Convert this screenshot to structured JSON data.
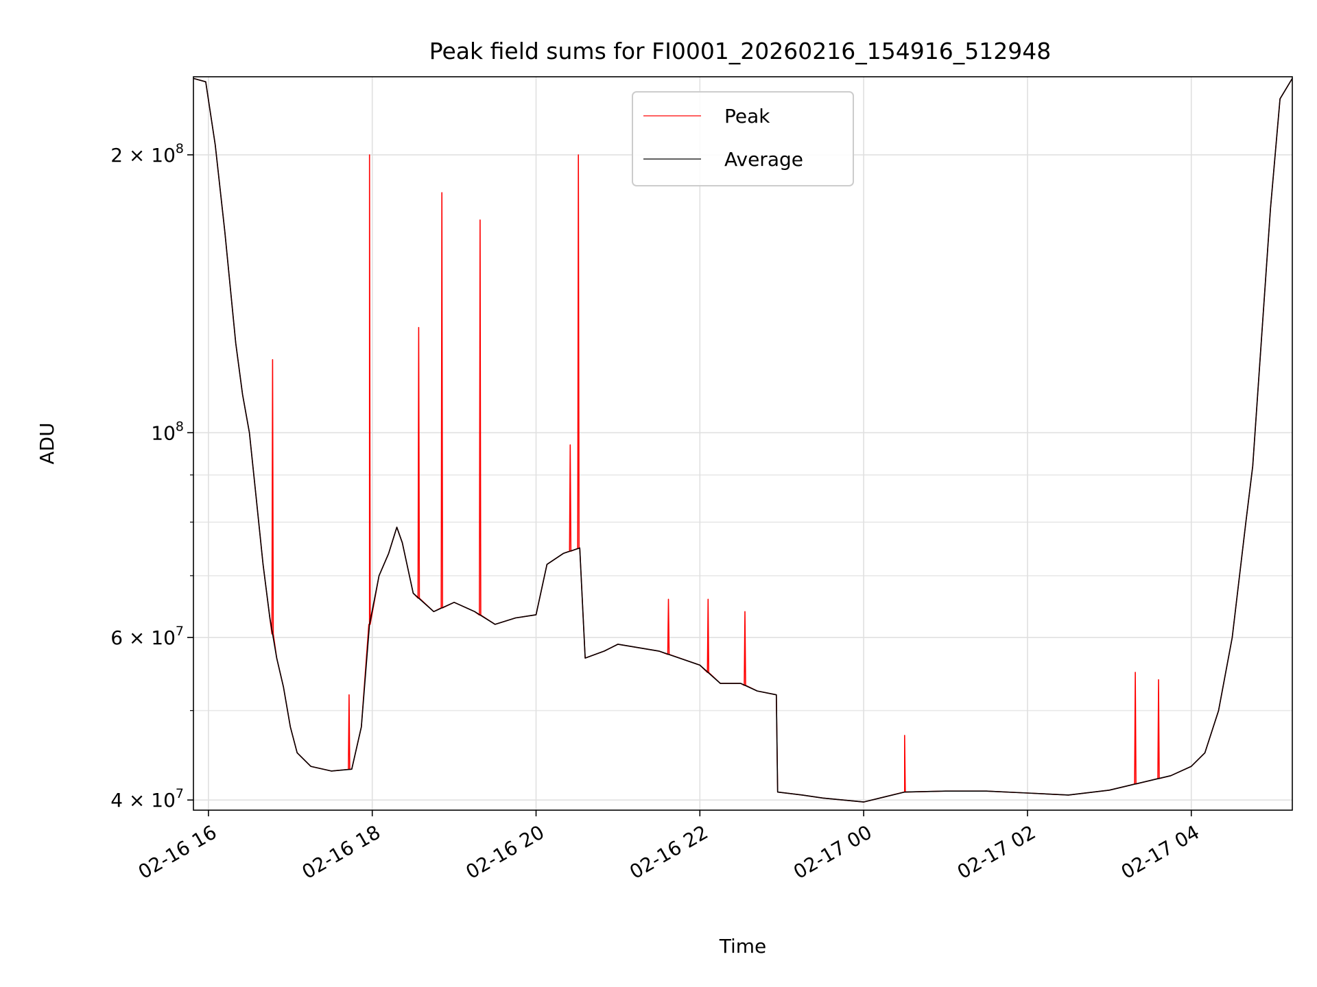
{
  "chart_data": {
    "type": "line",
    "title": "Peak field sums for FI0001_20260216_154916_512948",
    "xlabel": "Time",
    "ylabel": "ADU",
    "yscale": "log",
    "ylim": [
      39000000,
      243000000
    ],
    "xlim": [
      "2026-02-16 15:49",
      "2026-02-17 05:14"
    ],
    "grid": true,
    "legend_position": "top-center",
    "x_ticks": [
      {
        "value": "2026-02-16 16:00",
        "label": "02-16 16"
      },
      {
        "value": "2026-02-16 18:00",
        "label": "02-16 18"
      },
      {
        "value": "2026-02-16 20:00",
        "label": "02-16 20"
      },
      {
        "value": "2026-02-16 22:00",
        "label": "02-16 22"
      },
      {
        "value": "2026-02-17 00:00",
        "label": "02-17 00"
      },
      {
        "value": "2026-02-17 02:00",
        "label": "02-17 02"
      },
      {
        "value": "2026-02-17 04:00",
        "label": "02-17 04"
      }
    ],
    "y_ticks": [
      {
        "value": 40000000,
        "label": "4 × 10",
        "exp": "7"
      },
      {
        "value": 60000000,
        "label": "6 × 10",
        "exp": "7"
      },
      {
        "value": 100000000,
        "label": "10",
        "exp": "8"
      },
      {
        "value": 200000000,
        "label": "2 × 10",
        "exp": "8"
      }
    ],
    "y_minor_ticks": [
      50000000,
      70000000,
      80000000,
      90000000
    ],
    "series": [
      {
        "name": "Peak",
        "color": "#ff0000"
      },
      {
        "name": "Average",
        "color": "#000000"
      }
    ],
    "average": [
      [
        "2026-02-16 15:49",
        242000000
      ],
      [
        "2026-02-16 15:58",
        240000000
      ],
      [
        "2026-02-16 16:05",
        205000000
      ],
      [
        "2026-02-16 16:12",
        165000000
      ],
      [
        "2026-02-16 16:20",
        125000000
      ],
      [
        "2026-02-16 16:25",
        110000000
      ],
      [
        "2026-02-16 16:30",
        100000000
      ],
      [
        "2026-02-16 16:35",
        85000000
      ],
      [
        "2026-02-16 16:40",
        72000000
      ],
      [
        "2026-02-16 16:45",
        63000000
      ],
      [
        "2026-02-16 16:50",
        57000000
      ],
      [
        "2026-02-16 16:55",
        53000000
      ],
      [
        "2026-02-16 17:00",
        48000000
      ],
      [
        "2026-02-16 17:05",
        45000000
      ],
      [
        "2026-02-16 17:15",
        43500000
      ],
      [
        "2026-02-16 17:30",
        43000000
      ],
      [
        "2026-02-16 17:45",
        43200000
      ],
      [
        "2026-02-16 17:52",
        48000000
      ],
      [
        "2026-02-16 17:58",
        62000000
      ],
      [
        "2026-02-16 18:05",
        70000000
      ],
      [
        "2026-02-16 18:12",
        74000000
      ],
      [
        "2026-02-16 18:18",
        79000000
      ],
      [
        "2026-02-16 18:22",
        76000000
      ],
      [
        "2026-02-16 18:30",
        67000000
      ],
      [
        "2026-02-16 18:45",
        64000000
      ],
      [
        "2026-02-16 19:00",
        65500000
      ],
      [
        "2026-02-16 19:15",
        64000000
      ],
      [
        "2026-02-16 19:30",
        62000000
      ],
      [
        "2026-02-16 19:45",
        63000000
      ],
      [
        "2026-02-16 20:00",
        63500000
      ],
      [
        "2026-02-16 20:08",
        72000000
      ],
      [
        "2026-02-16 20:20",
        74000000
      ],
      [
        "2026-02-16 20:32",
        75000000
      ],
      [
        "2026-02-16 20:36",
        57000000
      ],
      [
        "2026-02-16 20:50",
        58000000
      ],
      [
        "2026-02-16 21:00",
        59000000
      ],
      [
        "2026-02-16 21:30",
        58000000
      ],
      [
        "2026-02-16 22:00",
        56000000
      ],
      [
        "2026-02-16 22:15",
        53500000
      ],
      [
        "2026-02-16 22:30",
        53500000
      ],
      [
        "2026-02-16 22:42",
        52500000
      ],
      [
        "2026-02-16 22:56",
        52000000
      ],
      [
        "2026-02-16 22:57",
        40800000
      ],
      [
        "2026-02-16 23:15",
        40500000
      ],
      [
        "2026-02-16 23:30",
        40200000
      ],
      [
        "2026-02-16 23:45",
        40000000
      ],
      [
        "2026-02-17 00:00",
        39800000
      ],
      [
        "2026-02-17 00:15",
        40300000
      ],
      [
        "2026-02-17 00:30",
        40800000
      ],
      [
        "2026-02-17 01:00",
        40900000
      ],
      [
        "2026-02-17 01:30",
        40900000
      ],
      [
        "2026-02-17 02:00",
        40700000
      ],
      [
        "2026-02-17 02:30",
        40500000
      ],
      [
        "2026-02-17 03:00",
        41000000
      ],
      [
        "2026-02-17 03:15",
        41500000
      ],
      [
        "2026-02-17 03:30",
        42000000
      ],
      [
        "2026-02-17 03:45",
        42500000
      ],
      [
        "2026-02-17 04:00",
        43500000
      ],
      [
        "2026-02-17 04:10",
        45000000
      ],
      [
        "2026-02-17 04:20",
        50000000
      ],
      [
        "2026-02-17 04:30",
        60000000
      ],
      [
        "2026-02-17 04:40",
        80000000
      ],
      [
        "2026-02-17 04:45",
        92000000
      ],
      [
        "2026-02-17 04:52",
        130000000
      ],
      [
        "2026-02-17 04:58",
        175000000
      ],
      [
        "2026-02-17 05:05",
        230000000
      ],
      [
        "2026-02-17 05:14",
        242000000
      ]
    ],
    "peak_spikes": [
      [
        "2026-02-16 16:47",
        120000000
      ],
      [
        "2026-02-16 17:43",
        52000000
      ],
      [
        "2026-02-16 17:58",
        200000000
      ],
      [
        "2026-02-16 18:34",
        130000000
      ],
      [
        "2026-02-16 18:51",
        182000000
      ],
      [
        "2026-02-16 19:19",
        170000000
      ],
      [
        "2026-02-16 20:25",
        97000000
      ],
      [
        "2026-02-16 20:31",
        200000000
      ],
      [
        "2026-02-16 21:37",
        66000000
      ],
      [
        "2026-02-16 22:06",
        66000000
      ],
      [
        "2026-02-16 22:33",
        64000000
      ],
      [
        "2026-02-17 00:30",
        47000000
      ],
      [
        "2026-02-17 03:19",
        55000000
      ],
      [
        "2026-02-17 03:36",
        54000000
      ]
    ]
  }
}
